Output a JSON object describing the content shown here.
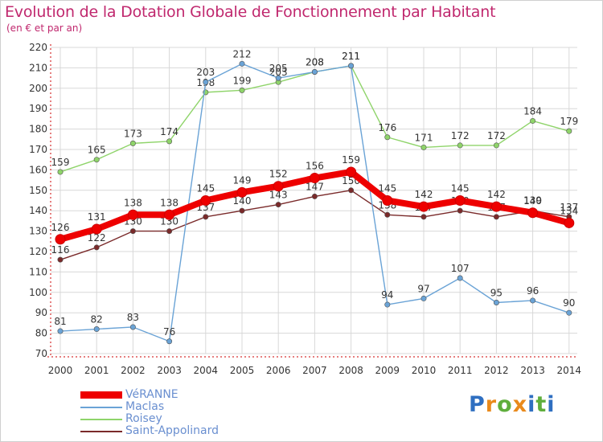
{
  "title": "Evolution de la Dotation Globale de Fonctionnement par Habitant",
  "subtitle": "(en € et par an)",
  "brand": {
    "text": "Proxiti",
    "letters": [
      "P",
      "r",
      "o",
      "x",
      "i",
      "t",
      "i"
    ],
    "colors": [
      "#2f6fc1",
      "#e98a1c",
      "#5fae3c",
      "#e98a1c",
      "#2f6fc1",
      "#5fae3c",
      "#2f6fc1"
    ]
  },
  "colors": {
    "title": "#c0286e",
    "axis": "#cc0000",
    "grid": "#d8d8d8"
  },
  "chart_data": {
    "type": "line",
    "title": "Evolution de la Dotation Globale de Fonctionnement par Habitant",
    "subtitle": "(en € et par an)",
    "xlabel": "",
    "ylabel": "",
    "ylim": [
      70,
      220
    ],
    "yticks": [
      70,
      80,
      90,
      100,
      110,
      120,
      130,
      140,
      150,
      160,
      170,
      180,
      190,
      200,
      210,
      220
    ],
    "grid": true,
    "legend_position": "bottom-left",
    "categories": [
      "2000",
      "2001",
      "2002",
      "2003",
      "2004",
      "2005",
      "2006",
      "2007",
      "2008",
      "2009",
      "2010",
      "2011",
      "2012",
      "2013",
      "2014"
    ],
    "series": [
      {
        "name": "Saint-Appolinard",
        "color": "#7a2a2a",
        "values": [
          116,
          122,
          130,
          130,
          137,
          140,
          143,
          147,
          150,
          138,
          137,
          140,
          137,
          140,
          137
        ]
      },
      {
        "name": "Roisey",
        "color": "#8fd46a",
        "values": [
          159,
          165,
          173,
          174,
          198,
          199,
          203,
          208,
          211,
          176,
          171,
          172,
          172,
          184,
          179
        ]
      },
      {
        "name": "Maclas",
        "color": "#6aa3d6",
        "values": [
          81,
          82,
          83,
          76,
          203,
          212,
          205,
          208,
          211,
          94,
          97,
          107,
          95,
          96,
          90
        ]
      },
      {
        "name": "VéRANNE",
        "color": "#ee0000",
        "values": [
          126,
          131,
          138,
          138,
          145,
          149,
          152,
          156,
          159,
          145,
          142,
          145,
          142,
          139,
          134
        ]
      }
    ],
    "legend": [
      "VéRANNE",
      "Maclas",
      "Roisey",
      "Saint-Appolinard"
    ]
  }
}
